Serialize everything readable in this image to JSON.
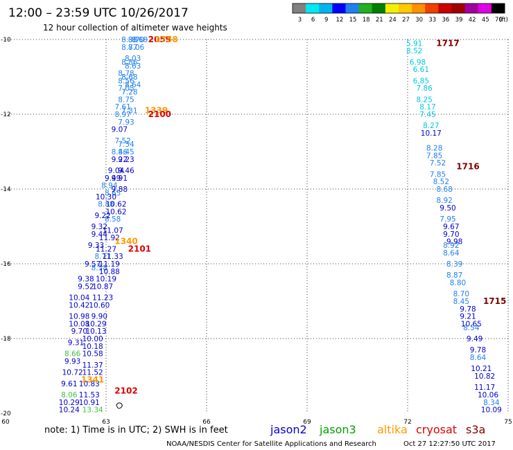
{
  "header": {
    "title": "12:00 – 23:59 UTC 10/26/2017",
    "subtitle": "12 hour collection of altimeter wave heights"
  },
  "colorbar": {
    "labels": [
      "3",
      "6",
      "9",
      "12",
      "15",
      "18",
      "21",
      "24",
      "27",
      "30",
      "33",
      "36",
      "39",
      "42",
      "45",
      "70"
    ],
    "unit": "(ft)",
    "colors": [
      "#808080",
      "#00e8f0",
      "#00b4f0",
      "#0000ff",
      "#2080f0",
      "#20b020",
      "#008000",
      "#f0f000",
      "#ffc800",
      "#ff9000",
      "#f04000",
      "#c80000",
      "#a00000",
      "#a000a0",
      "#e000e0",
      "#000000"
    ]
  },
  "legend": {
    "items": [
      {
        "name": "jason2",
        "color": "#0000cc"
      },
      {
        "name": "jason3",
        "color": "#00a000"
      },
      {
        "name": "altika",
        "color": "#ff9900"
      },
      {
        "name": "cryosat",
        "color": "#dd0000"
      },
      {
        "name": "s3a",
        "color": "#800000"
      }
    ]
  },
  "footer": {
    "note": "note:  1) Time is in UTC;  2) SWH is in feet",
    "credit": "NOAA/NESDIS Center for Satellite Applications and Research",
    "timestamp": "Oct 27 12:27:50 UTC 2017"
  },
  "chart_data": {
    "type": "scatter",
    "xlim": [
      60,
      75
    ],
    "ylim": [
      -20,
      -10
    ],
    "x_ticks": [
      "60",
      "63",
      "66",
      "69",
      "72",
      "75"
    ],
    "y_ticks": [
      "-10",
      "-12",
      "-14",
      "-16",
      "-18",
      "-20"
    ],
    "grid": true,
    "track_labels": [
      {
        "text": "2059",
        "x": 64.6,
        "y": -10.0,
        "color": "#dd0000"
      },
      {
        "text": "1758",
        "x": 64.8,
        "y": -10.0,
        "color": "#ff9900"
      },
      {
        "text": "1339",
        "x": 64.5,
        "y": -11.9,
        "color": "#ff9900"
      },
      {
        "text": "2100",
        "x": 64.6,
        "y": -12.0,
        "color": "#dd0000"
      },
      {
        "text": "1340",
        "x": 63.6,
        "y": -15.4,
        "color": "#ff9900"
      },
      {
        "text": "2101",
        "x": 64.0,
        "y": -15.6,
        "color": "#dd0000"
      },
      {
        "text": "1341",
        "x": 62.6,
        "y": -19.1,
        "color": "#ff9900"
      },
      {
        "text": "2102",
        "x": 63.6,
        "y": -19.4,
        "color": "#dd0000"
      },
      {
        "text": "1717",
        "x": 73.2,
        "y": -10.1,
        "color": "#800000"
      },
      {
        "text": "1716",
        "x": 73.8,
        "y": -13.4,
        "color": "#800000"
      },
      {
        "text": "1715",
        "x": 74.6,
        "y": -17.0,
        "color": "#800000"
      }
    ],
    "series": [
      {
        "name": "s3a",
        "color": "#2080f0",
        "points": [
          {
            "x": 63.7,
            "y": -10.0,
            "v": "8.38"
          },
          {
            "x": 63.9,
            "y": -10.0,
            "v": "8.70"
          },
          {
            "x": 64.0,
            "y": -10.0,
            "v": "8.68"
          },
          {
            "x": 63.7,
            "y": -10.2,
            "v": "8.77"
          },
          {
            "x": 63.9,
            "y": -10.2,
            "v": "8.06"
          },
          {
            "x": 63.8,
            "y": -10.5,
            "v": "8.03"
          },
          {
            "x": 63.7,
            "y": -10.6,
            "v": "8.86"
          },
          {
            "x": 63.8,
            "y": -10.7,
            "v": "8.63"
          },
          {
            "x": 63.6,
            "y": -10.9,
            "v": "8.78"
          },
          {
            "x": 63.7,
            "y": -11.0,
            "v": "8.68"
          },
          {
            "x": 63.6,
            "y": -11.1,
            "v": "8.56"
          },
          {
            "x": 63.8,
            "y": -11.2,
            "v": "8.64"
          },
          {
            "x": 63.6,
            "y": -11.3,
            "v": "7.05"
          },
          {
            "x": 63.7,
            "y": -11.4,
            "v": "7.28"
          },
          {
            "x": 63.6,
            "y": -11.6,
            "v": "8.75"
          },
          {
            "x": 63.5,
            "y": -11.8,
            "v": "7.61"
          },
          {
            "x": 63.7,
            "y": -11.9,
            "v": "7.31"
          },
          {
            "x": 63.5,
            "y": -12.0,
            "v": "8.97"
          },
          {
            "x": 63.6,
            "y": -12.2,
            "v": "7.93"
          },
          {
            "x": 63.5,
            "y": -12.7,
            "v": "7.52"
          },
          {
            "x": 63.6,
            "y": -12.8,
            "v": "7.54"
          },
          {
            "x": 63.4,
            "y": -13.0,
            "v": "8.46"
          },
          {
            "x": 63.6,
            "y": -13.0,
            "v": "8.45"
          },
          {
            "x": 63.1,
            "y": -13.9,
            "v": "8.94"
          },
          {
            "x": 63.2,
            "y": -14.1,
            "v": "8.65"
          },
          {
            "x": 63.0,
            "y": -14.4,
            "v": "8.88"
          },
          {
            "x": 63.2,
            "y": -14.8,
            "v": "8.58"
          },
          {
            "x": 62.9,
            "y": -15.8,
            "v": "8.71"
          },
          {
            "x": 62.8,
            "y": -16.1,
            "v": "8.58"
          }
        ]
      },
      {
        "name": "jason2",
        "color": "#0000cc",
        "points": [
          {
            "x": 63.4,
            "y": -12.4,
            "v": "9.07"
          },
          {
            "x": 63.4,
            "y": -13.2,
            "v": "9.22"
          },
          {
            "x": 63.6,
            "y": -13.2,
            "v": "9.23"
          },
          {
            "x": 63.3,
            "y": -13.5,
            "v": "9.04"
          },
          {
            "x": 63.6,
            "y": -13.5,
            "v": "9.46"
          },
          {
            "x": 63.2,
            "y": -13.7,
            "v": "9.49"
          },
          {
            "x": 63.4,
            "y": -13.7,
            "v": "9.91"
          },
          {
            "x": 63.4,
            "y": -14.0,
            "v": "9.88"
          },
          {
            "x": 63.0,
            "y": -14.2,
            "v": "10.30"
          },
          {
            "x": 63.3,
            "y": -14.4,
            "v": "10.62"
          },
          {
            "x": 63.3,
            "y": -14.6,
            "v": "10.62"
          },
          {
            "x": 62.9,
            "y": -14.7,
            "v": "9.22"
          },
          {
            "x": 62.8,
            "y": -15.0,
            "v": "9.32"
          },
          {
            "x": 63.2,
            "y": -15.1,
            "v": "11.07"
          },
          {
            "x": 62.8,
            "y": -15.2,
            "v": "9.44"
          },
          {
            "x": 63.1,
            "y": -15.3,
            "v": "11.92"
          },
          {
            "x": 62.7,
            "y": -15.5,
            "v": "9.33"
          },
          {
            "x": 63.0,
            "y": -15.6,
            "v": "11.27"
          },
          {
            "x": 63.2,
            "y": -15.8,
            "v": "11.33"
          },
          {
            "x": 62.6,
            "y": -16.0,
            "v": "9.57"
          },
          {
            "x": 63.1,
            "y": -16.0,
            "v": "11.19"
          },
          {
            "x": 63.1,
            "y": -16.2,
            "v": "10.88"
          },
          {
            "x": 62.4,
            "y": -16.4,
            "v": "9.38"
          },
          {
            "x": 63.0,
            "y": -16.4,
            "v": "10.19"
          },
          {
            "x": 62.4,
            "y": -16.6,
            "v": "9.52"
          },
          {
            "x": 62.9,
            "y": -16.6,
            "v": "10.87"
          },
          {
            "x": 62.2,
            "y": -16.9,
            "v": "10.04"
          },
          {
            "x": 62.9,
            "y": -16.9,
            "v": "11.23"
          },
          {
            "x": 62.2,
            "y": -17.1,
            "v": "10.42"
          },
          {
            "x": 62.8,
            "y": -17.1,
            "v": "10.60"
          },
          {
            "x": 62.2,
            "y": -17.4,
            "v": "10.98"
          },
          {
            "x": 62.8,
            "y": -17.4,
            "v": "9.90"
          },
          {
            "x": 62.2,
            "y": -17.6,
            "v": "10.08"
          },
          {
            "x": 62.7,
            "y": -17.6,
            "v": "10.29"
          },
          {
            "x": 62.2,
            "y": -17.8,
            "v": "9.70"
          },
          {
            "x": 62.7,
            "y": -17.8,
            "v": "10.13"
          },
          {
            "x": 62.1,
            "y": -18.1,
            "v": "9.31"
          },
          {
            "x": 62.6,
            "y": -18.0,
            "v": "10.00"
          },
          {
            "x": 62.6,
            "y": -18.2,
            "v": "10.18"
          },
          {
            "x": 62.6,
            "y": -18.4,
            "v": "10.58"
          },
          {
            "x": 62.0,
            "y": -18.6,
            "v": "9.93"
          },
          {
            "x": 62.6,
            "y": -18.7,
            "v": "11.37"
          },
          {
            "x": 62.0,
            "y": -18.9,
            "v": "10.72"
          },
          {
            "x": 62.6,
            "y": -18.9,
            "v": "11.52"
          },
          {
            "x": 61.9,
            "y": -19.2,
            "v": "9.61"
          },
          {
            "x": 62.5,
            "y": -19.2,
            "v": "10.83"
          },
          {
            "x": 62.5,
            "y": -19.5,
            "v": "11.53"
          },
          {
            "x": 61.9,
            "y": -19.7,
            "v": "10.29"
          },
          {
            "x": 62.5,
            "y": -19.7,
            "v": "10.91"
          },
          {
            "x": 61.9,
            "y": -19.9,
            "v": "10.24"
          }
        ]
      },
      {
        "name": "jason3",
        "color": "#40c040",
        "points": [
          {
            "x": 62.0,
            "y": -18.4,
            "v": "8.66"
          },
          {
            "x": 61.9,
            "y": -19.5,
            "v": "8.06"
          },
          {
            "x": 62.6,
            "y": -19.9,
            "v": "13.34"
          }
        ]
      },
      {
        "name": "s3a-cyan",
        "color": "#00c8e0",
        "points": [
          {
            "x": 72.2,
            "y": -10.1,
            "v": "5.91"
          },
          {
            "x": 72.2,
            "y": -10.3,
            "v": "8.52"
          },
          {
            "x": 72.3,
            "y": -10.6,
            "v": "6.98"
          },
          {
            "x": 72.4,
            "y": -10.8,
            "v": "6.61"
          },
          {
            "x": 72.4,
            "y": -11.1,
            "v": "6.85"
          },
          {
            "x": 72.5,
            "y": -11.3,
            "v": "7.86"
          },
          {
            "x": 72.5,
            "y": -11.6,
            "v": "8.25"
          },
          {
            "x": 72.6,
            "y": -11.8,
            "v": "8.17"
          },
          {
            "x": 72.6,
            "y": -12.0,
            "v": "7.45"
          },
          {
            "x": 72.7,
            "y": -12.3,
            "v": "8.27"
          }
        ]
      },
      {
        "name": "s3a-east",
        "color": "#2080f0",
        "points": [
          {
            "x": 72.8,
            "y": -12.9,
            "v": "8.28"
          },
          {
            "x": 72.8,
            "y": -13.1,
            "v": "7.85"
          },
          {
            "x": 72.9,
            "y": -13.3,
            "v": "7.52"
          },
          {
            "x": 72.9,
            "y": -13.6,
            "v": "7.85"
          },
          {
            "x": 73.0,
            "y": -13.8,
            "v": "8.52"
          },
          {
            "x": 73.1,
            "y": -14.0,
            "v": "8.68"
          },
          {
            "x": 73.1,
            "y": -14.3,
            "v": "8.92"
          },
          {
            "x": 73.2,
            "y": -14.8,
            "v": "7.95"
          },
          {
            "x": 73.3,
            "y": -15.5,
            "v": "8.92"
          },
          {
            "x": 73.3,
            "y": -15.7,
            "v": "8.64"
          },
          {
            "x": 73.4,
            "y": -16.0,
            "v": "8.39"
          },
          {
            "x": 73.4,
            "y": -16.3,
            "v": "8.87"
          },
          {
            "x": 73.5,
            "y": -16.5,
            "v": "8.80"
          },
          {
            "x": 73.6,
            "y": -16.8,
            "v": "8.70"
          },
          {
            "x": 73.6,
            "y": -17.0,
            "v": "8.45"
          },
          {
            "x": 73.9,
            "y": -17.7,
            "v": "8.54"
          },
          {
            "x": 74.1,
            "y": -18.5,
            "v": "8.64"
          },
          {
            "x": 74.5,
            "y": -19.7,
            "v": "8.34"
          }
        ]
      },
      {
        "name": "s3a-east-blue",
        "color": "#0000cc",
        "points": [
          {
            "x": 72.7,
            "y": -12.5,
            "v": "10.17"
          },
          {
            "x": 73.2,
            "y": -14.5,
            "v": "9.50"
          },
          {
            "x": 73.3,
            "y": -15.0,
            "v": "9.67"
          },
          {
            "x": 73.3,
            "y": -15.2,
            "v": "9.70"
          },
          {
            "x": 73.4,
            "y": -15.4,
            "v": "9.98"
          },
          {
            "x": 73.8,
            "y": -17.2,
            "v": "9.78"
          },
          {
            "x": 73.8,
            "y": -17.4,
            "v": "9.21"
          },
          {
            "x": 73.9,
            "y": -17.6,
            "v": "10.65"
          },
          {
            "x": 74.0,
            "y": -18.0,
            "v": "9.49"
          },
          {
            "x": 74.1,
            "y": -18.3,
            "v": "9.78"
          },
          {
            "x": 74.2,
            "y": -18.8,
            "v": "10.21"
          },
          {
            "x": 74.3,
            "y": -19.0,
            "v": "10.82"
          },
          {
            "x": 74.3,
            "y": -19.3,
            "v": "11.17"
          },
          {
            "x": 74.4,
            "y": -19.5,
            "v": "10.06"
          },
          {
            "x": 74.5,
            "y": -19.9,
            "v": "10.09"
          }
        ]
      }
    ]
  }
}
